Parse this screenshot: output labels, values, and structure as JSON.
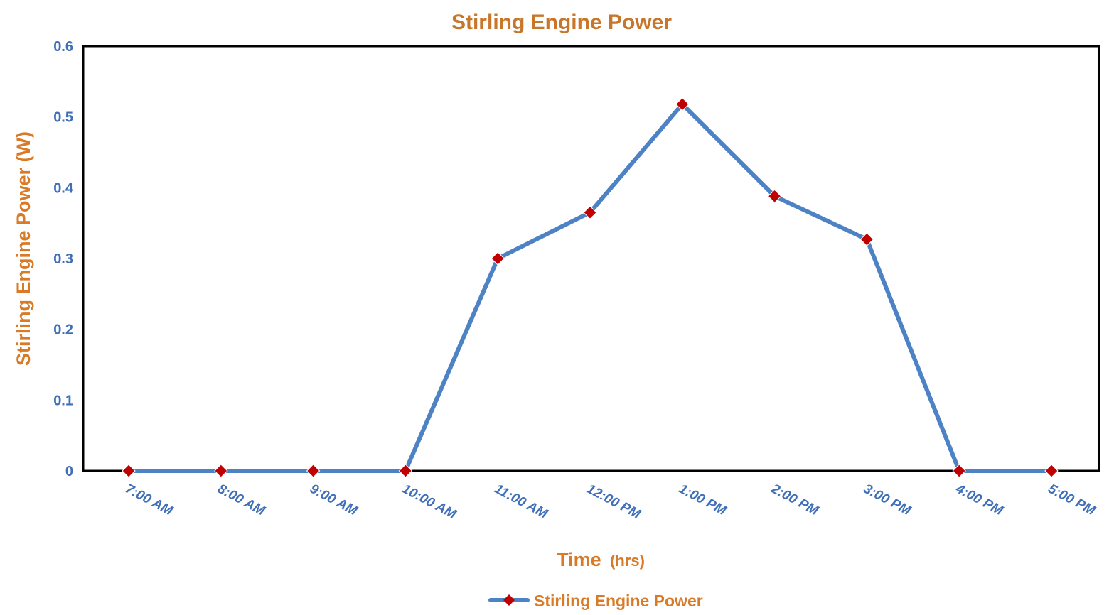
{
  "chart_data": {
    "type": "line",
    "title": "Stirling Engine Power",
    "xlabel": "Time",
    "xlabel_unit": "(hrs)",
    "ylabel": "Stirling Engine Power (W)",
    "categories": [
      "7:00 AM",
      "8:00 AM",
      "9:00 AM",
      "10:00 AM",
      "11:00 AM",
      "12:00 PM",
      "1:00 PM",
      "2:00 PM",
      "3:00 PM",
      "4:00 PM",
      "5:00 PM"
    ],
    "series": [
      {
        "name": "Stirling Engine Power",
        "values": [
          0,
          0,
          0,
          0,
          0.3,
          0.365,
          0.518,
          0.388,
          0.327,
          0,
          0
        ]
      }
    ],
    "ylim": [
      0,
      0.6
    ],
    "yticks": [
      "0",
      "0.1",
      "0.2",
      "0.3",
      "0.4",
      "0.5",
      "0.6"
    ],
    "grid": false,
    "legend_position": "bottom-center"
  },
  "colors": {
    "title": "#C8762A",
    "axis_title": "#D97A26",
    "tick": "#3E6FB8",
    "line": "#4D82C4",
    "marker": "#C00000",
    "frame": "#000000"
  },
  "icons": {
    "marker": "diamond-marker-icon",
    "legend": "line-with-diamond-legend-icon"
  }
}
